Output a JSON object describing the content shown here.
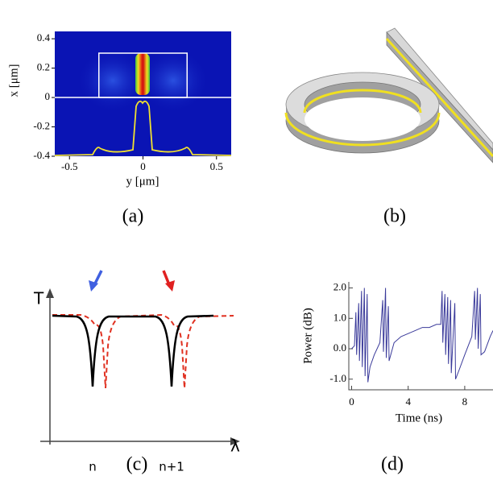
{
  "panels": [
    {
      "label": "(a)",
      "xlabel": "y [μm]",
      "ylabel": "x [μm]",
      "xlim": [
        -0.6,
        0.6
      ],
      "ylim": [
        -0.4,
        0.45
      ],
      "xticks": [
        -0.5,
        0,
        0.5
      ],
      "yticks": [
        0.4,
        0.2,
        0,
        -0.2,
        -0.4
      ]
    },
    {
      "label": "(b)"
    },
    {
      "label": "(c)",
      "ylabel": "T",
      "xlabel": "λ",
      "resonances": [
        "n",
        "n+1"
      ]
    },
    {
      "label": "(d)",
      "type": "line",
      "xlabel": "Time (ns)",
      "ylabel": "Power (dB)",
      "color": "#3a3a9a",
      "xlim": [
        -0.2,
        10
      ],
      "ylim": [
        -1.35,
        2.2
      ],
      "xticks": [
        0,
        4,
        8
      ],
      "yticks": [
        {
          "value": 2,
          "label": "2.0"
        },
        {
          "value": 1,
          "label": "1.0"
        },
        {
          "value": 0,
          "label": "0.0"
        },
        {
          "value": -1,
          "label": "-1.0"
        }
      ],
      "x": [
        0,
        0.2,
        0.3,
        0.35,
        0.5,
        0.55,
        0.7,
        0.75,
        0.9,
        0.95,
        1.1,
        1.15,
        1.3,
        1.6,
        2.0,
        2.2,
        2.25,
        2.4,
        2.45,
        2.6,
        2.65,
        3.0,
        3.5,
        4.0,
        4.5,
        5.0,
        5.5,
        6.0,
        6.3,
        6.4,
        6.45,
        6.6,
        6.65,
        6.8,
        6.85,
        7.0,
        7.05,
        7.3,
        7.35,
        7.6,
        8.0,
        8.5,
        8.7,
        8.75,
        8.9,
        8.95,
        9.1,
        9.15,
        9.4,
        9.8,
        10.0
      ],
      "values": [
        0.0,
        0.1,
        1.2,
        -0.2,
        1.5,
        -0.4,
        1.9,
        -0.6,
        2.0,
        -0.9,
        1.8,
        -1.1,
        -0.6,
        -0.2,
        0.2,
        1.6,
        -0.1,
        2.0,
        -0.3,
        1.4,
        -0.4,
        0.2,
        0.4,
        0.5,
        0.6,
        0.7,
        0.7,
        0.8,
        0.8,
        1.9,
        0.2,
        1.8,
        -0.2,
        1.7,
        -0.5,
        1.6,
        -0.8,
        1.5,
        -1.0,
        -0.7,
        -0.2,
        0.4,
        1.9,
        0.3,
        2.0,
        0.0,
        1.8,
        -0.2,
        -0.1,
        0.4,
        0.6
      ]
    }
  ]
}
